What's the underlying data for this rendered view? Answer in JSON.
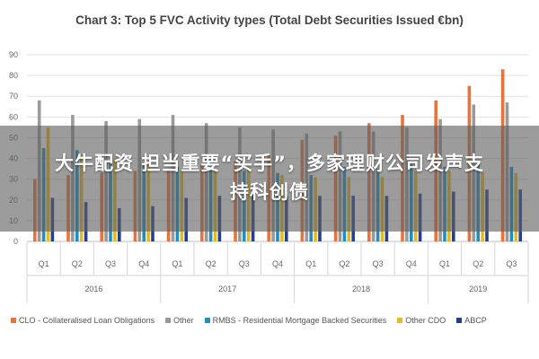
{
  "banner": {
    "line1": "大牛配资 担当重要“买手”，多家理财公司发声支",
    "line2": "持科创债"
  },
  "chart_data": {
    "type": "bar",
    "title": "Chart 3: Top 5 FVC Activity types (Total Debt Securities Issued €bn)",
    "xlabel": "",
    "ylabel": "",
    "ylim": [
      0,
      90
    ],
    "yticks": [
      0,
      10,
      20,
      30,
      40,
      50,
      60,
      70,
      80,
      90
    ],
    "grid": true,
    "legend_position": "bottom",
    "categories": [
      "Q1",
      "Q2",
      "Q3",
      "Q4",
      "Q1",
      "Q2",
      "Q3",
      "Q4",
      "Q1",
      "Q2",
      "Q3",
      "Q4",
      "Q1",
      "Q2",
      "Q3"
    ],
    "groups": [
      {
        "label": "2016",
        "count": 4
      },
      {
        "label": "2017",
        "count": 4
      },
      {
        "label": "2018",
        "count": 4
      },
      {
        "label": "2019",
        "count": 3
      }
    ],
    "series": [
      {
        "name": "CLO - Collateralised Loan Obligations",
        "color": "#e8743b",
        "values": [
          30,
          32,
          33,
          34,
          35,
          37,
          39,
          42,
          49,
          51,
          57,
          61,
          68,
          75,
          83
        ]
      },
      {
        "name": "Other",
        "color": "#9a9a9a",
        "values": [
          68,
          61,
          58,
          59,
          61,
          57,
          55,
          54,
          52,
          53,
          53,
          55,
          59,
          66,
          67
        ]
      },
      {
        "name": "RMBS - Residential Mortgage Backed Securities",
        "color": "#1f8fc0",
        "values": [
          45,
          44,
          39,
          38,
          36,
          35,
          34,
          33,
          32,
          36,
          35,
          37,
          36,
          38,
          36
        ]
      },
      {
        "name": "Other CDO",
        "color": "#e8b923",
        "values": [
          55,
          42,
          40,
          38,
          34,
          34,
          36,
          32,
          31,
          31,
          31,
          34,
          34,
          33,
          33
        ]
      },
      {
        "name": "ABCP",
        "color": "#243f8f",
        "values": [
          21,
          19,
          16,
          17,
          21,
          22,
          23,
          22,
          22,
          22,
          22,
          23,
          24,
          25,
          25
        ]
      }
    ]
  }
}
